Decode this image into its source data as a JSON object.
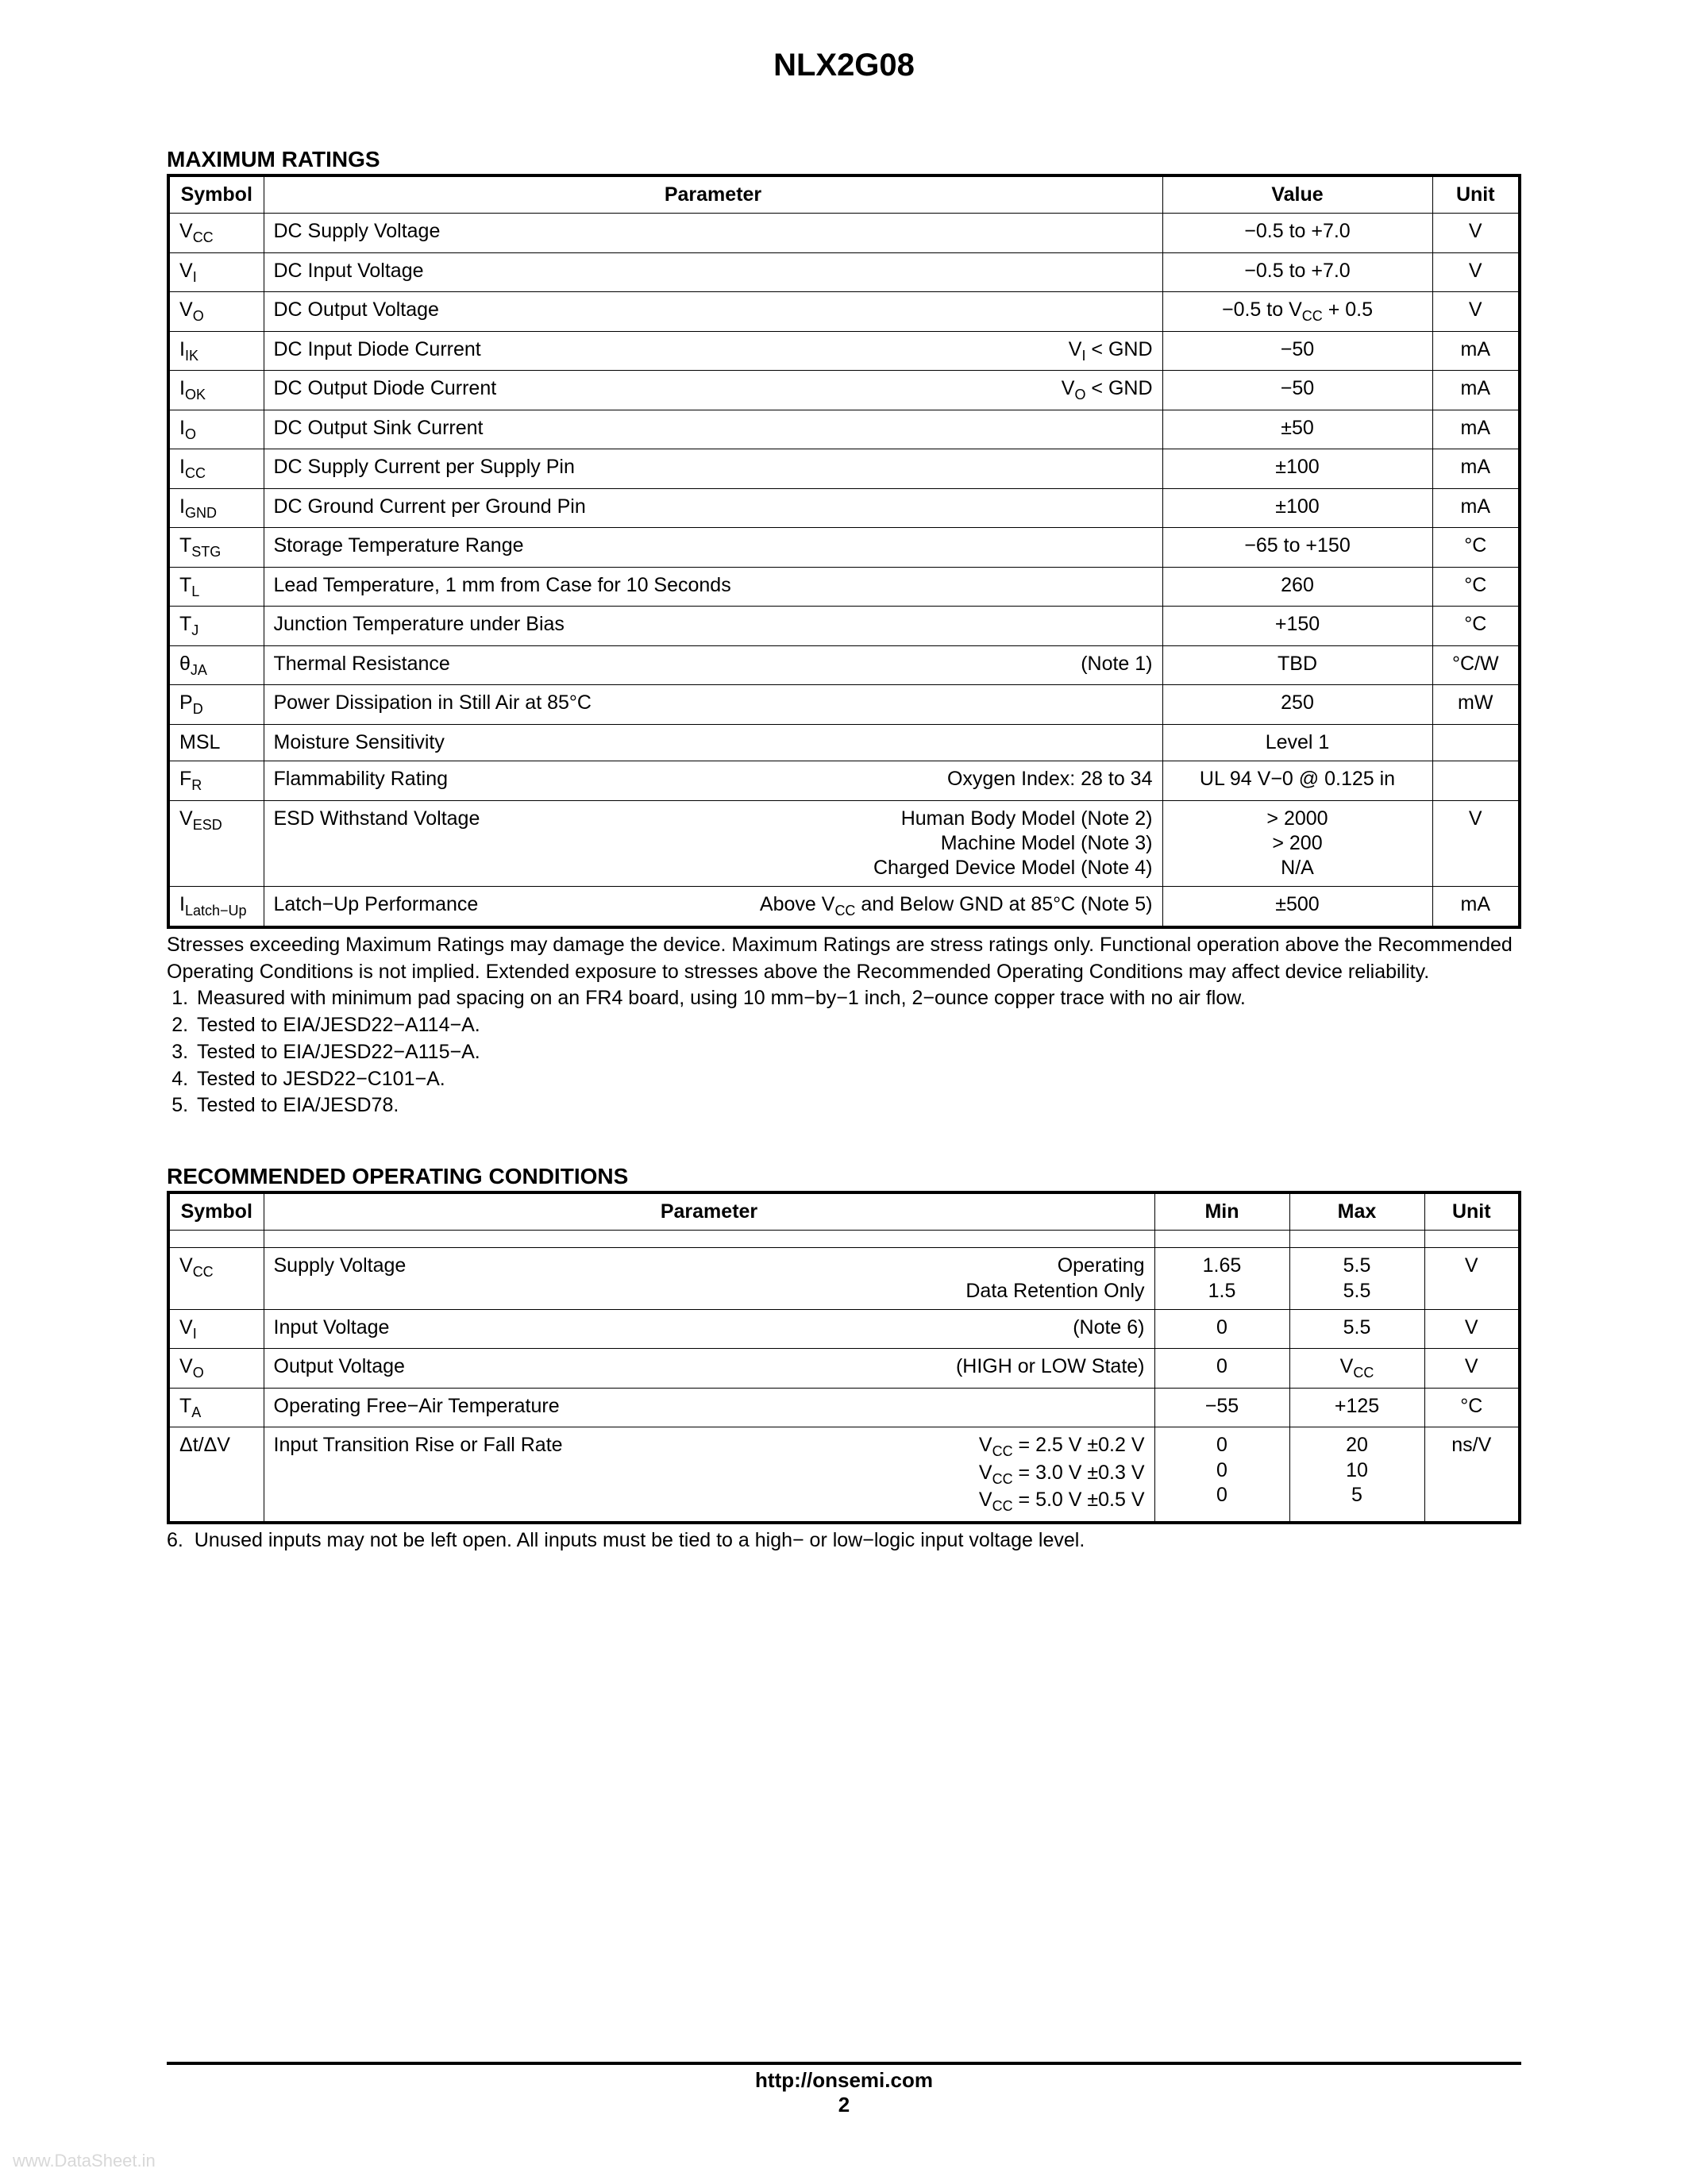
{
  "page_title": "NLX2G08",
  "footer_url": "http://onsemi.com",
  "footer_page": "2",
  "watermark": "www.DataSheet.in",
  "ratings": {
    "title": "MAXIMUM RATINGS",
    "headers": {
      "symbol": "Symbol",
      "parameter": "Parameter",
      "value": "Value",
      "unit": "Unit"
    },
    "rows": [
      {
        "symbol_html": "V<span class='sub'>CC</span>",
        "param": "DC Supply Voltage",
        "right": "",
        "value": "−0.5 to +7.0",
        "unit": "V"
      },
      {
        "symbol_html": "V<span class='sub'>I</span>",
        "param": "DC Input Voltage",
        "right": "",
        "value": "−0.5 to +7.0",
        "unit": "V"
      },
      {
        "symbol_html": "V<span class='sub'>O</span>",
        "param": "DC Output Voltage",
        "right": "",
        "value_html": "−0.5 to V<span class='sub'>CC</span> + 0.5",
        "unit": "V"
      },
      {
        "symbol_html": "I<span class='sub'>IK</span>",
        "param": "DC Input Diode Current",
        "right_html": "V<span class='sub'>I</span> &lt; GND",
        "value": "−50",
        "unit": "mA"
      },
      {
        "symbol_html": "I<span class='sub'>OK</span>",
        "param": "DC Output Diode Current",
        "right_html": "V<span class='sub'>O</span> &lt; GND",
        "value": "−50",
        "unit": "mA"
      },
      {
        "symbol_html": "I<span class='sub'>O</span>",
        "param": "DC Output Sink Current",
        "right": "",
        "value": "±50",
        "unit": "mA"
      },
      {
        "symbol_html": "I<span class='sub'>CC</span>",
        "param": "DC Supply Current per Supply Pin",
        "right": "",
        "value": "±100",
        "unit": "mA"
      },
      {
        "symbol_html": "I<span class='sub'>GND</span>",
        "param": "DC Ground Current per Ground Pin",
        "right": "",
        "value": "±100",
        "unit": "mA"
      },
      {
        "symbol_html": "T<span class='sub'>STG</span>",
        "param": "Storage Temperature Range",
        "right": "",
        "value": "−65 to +150",
        "unit": "°C"
      },
      {
        "symbol_html": "T<span class='sub'>L</span>",
        "param": "Lead Temperature, 1 mm from Case for 10 Seconds",
        "right": "",
        "value": "260",
        "unit": "°C"
      },
      {
        "symbol_html": "T<span class='sub'>J</span>",
        "param": "Junction Temperature under Bias",
        "right": "",
        "value": "+150",
        "unit": "°C"
      },
      {
        "symbol_html": "θ<span class='sub'>JA</span>",
        "param": "Thermal Resistance",
        "right": "(Note 1)",
        "value": "TBD",
        "unit": "°C/W"
      },
      {
        "symbol_html": "P<span class='sub'>D</span>",
        "param": "Power Dissipation in Still Air at 85°C",
        "right": "",
        "value": "250",
        "unit": "mW"
      },
      {
        "symbol_html": "MSL",
        "param": "Moisture Sensitivity",
        "right": "",
        "value": "Level 1",
        "unit": ""
      },
      {
        "symbol_html": "F<span class='sub'>R</span>",
        "param": "Flammability Rating",
        "right": "Oxygen Index: 28 to 34",
        "value": "UL 94 V−0 @ 0.125 in",
        "unit": ""
      },
      {
        "symbol_html": "V<span class='sub'>ESD</span>",
        "param": "ESD Withstand Voltage",
        "right_html": "Human Body Model (Note 2)<br>Machine Model (Note 3)<br>Charged Device Model (Note 4)",
        "value_html": "&gt; 2000<br>&gt; 200<br>N/A",
        "unit": "V"
      },
      {
        "symbol_html": "I<span class='sub'>Latch−Up</span>",
        "param": "Latch−Up Performance",
        "right_html": "Above V<span class='sub'>CC</span> and Below GND at 85°C (Note 5)",
        "value": "±500",
        "unit": "mA"
      }
    ],
    "footnote_text": "Stresses exceeding Maximum Ratings may damage the device. Maximum Ratings are stress ratings only. Functional operation above the Recommended Operating Conditions is not implied. Extended exposure to stresses above the Recommended Operating Conditions may affect device reliability.",
    "footnotes": [
      "Measured with minimum pad spacing on an FR4 board, using 10 mm−by−1 inch, 2−ounce copper trace with no air flow.",
      "Tested to EIA/JESD22−A114−A.",
      "Tested to EIA/JESD22−A115−A.",
      "Tested to JESD22−C101−A.",
      "Tested to EIA/JESD78."
    ]
  },
  "recommended": {
    "title": "RECOMMENDED OPERATING CONDITIONS",
    "headers": {
      "symbol": "Symbol",
      "parameter": "Parameter",
      "min": "Min",
      "max": "Max",
      "unit": "Unit"
    },
    "rows": [
      {
        "symbol_html": "V<span class='sub'>CC</span>",
        "param": "Supply Voltage",
        "right_html": "Operating<br>Data Retention Only",
        "min_html": "1.65<br>1.5",
        "max_html": "5.5<br>5.5",
        "unit": "V"
      },
      {
        "symbol_html": "V<span class='sub'>I</span>",
        "param": "Input Voltage",
        "right": "(Note 6)",
        "min": "0",
        "max": "5.5",
        "unit": "V"
      },
      {
        "symbol_html": "V<span class='sub'>O</span>",
        "param": "Output Voltage",
        "right": "(HIGH or LOW State)",
        "min": "0",
        "max_html": "V<span class='sub'>CC</span>",
        "unit": "V"
      },
      {
        "symbol_html": "T<span class='sub'>A</span>",
        "param": "Operating Free−Air Temperature",
        "right": "",
        "min": "−55",
        "max": "+125",
        "unit": "°C"
      },
      {
        "symbol_html": "Δt/ΔV",
        "param": "Input Transition Rise or Fall Rate",
        "right_html": "V<span class='sub'>CC</span> = 2.5 V ±0.2 V<br>V<span class='sub'>CC</span> = 3.0 V ±0.3 V<br>V<span class='sub'>CC</span> = 5.0 V ±0.5 V",
        "min_html": "0<br>0<br>0",
        "max_html": "20<br>10<br>5",
        "unit": "ns/V"
      }
    ],
    "footnote6": "Unused inputs may not be left open. All inputs must be tied to a high− or low−logic input voltage level."
  }
}
